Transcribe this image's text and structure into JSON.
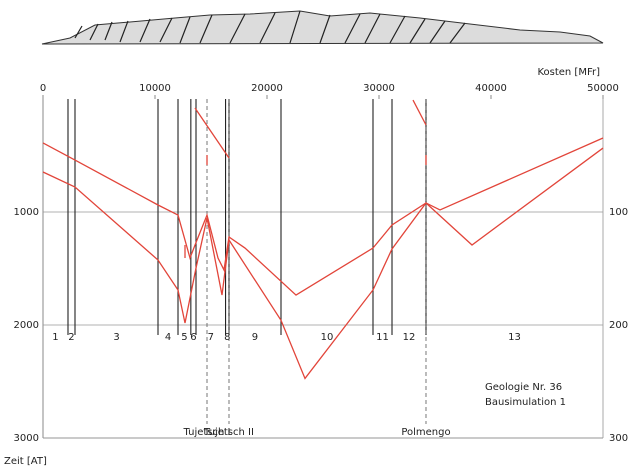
{
  "chart_data": {
    "type": "line",
    "x_label": "Kosten [MFr]",
    "y_label": "Zeit [AT]",
    "xlim": [
      0,
      50000
    ],
    "xticks": [
      0,
      10000,
      20000,
      30000,
      40000,
      50000
    ],
    "ylim": [
      0,
      3000
    ],
    "yticks": [
      1000,
      2000,
      3000
    ],
    "y_inverted": true,
    "grid": true,
    "section_boundaries": [
      2232,
      2857,
      10268,
      12054,
      13200,
      13661,
      16300,
      16607,
      21250,
      29464,
      31161,
      34196
    ],
    "section_labels": [
      "1",
      "2",
      "3",
      "4",
      "5",
      "6",
      "7",
      "8",
      "9",
      "10",
      "11",
      "12",
      "13"
    ],
    "annotations": [
      {
        "label": "Tujetsch I",
        "x": 14643
      },
      {
        "label": "Tujetsch II",
        "x": 16607
      },
      {
        "label": "Polmengo",
        "x": 34196
      }
    ],
    "notes": [
      "Geologie Nr. 36",
      "Bausimulation 1"
    ],
    "series": [
      {
        "color": "#e2453a",
        "x": [
          0,
          2857,
          10268,
          12054,
          13125,
          13750,
          14643,
          15625,
          16161,
          16607,
          18036,
          22589,
          29464,
          31161,
          34196,
          35446,
          50000
        ],
        "values": [
          389,
          540,
          938,
          1027,
          1407,
          1248,
          1027,
          1407,
          1513,
          1221,
          1319,
          1735,
          1319,
          1115,
          920,
          982,
          345
        ]
      },
      {
        "color": "#e2453a",
        "x": [
          0,
          2857,
          10268,
          12054,
          12679,
          13661,
          14643,
          15982,
          16607,
          21250,
          23393,
          29464,
          31161,
          34196,
          38304,
          50000
        ],
        "values": [
          646,
          779,
          1425,
          1690,
          1982,
          1496,
          1053,
          1735,
          1248,
          1958,
          2473,
          1690,
          1327,
          920,
          1292,
          434
        ]
      },
      {
        "color": "#e2453a",
        "x": [
          13571,
          16607
        ],
        "values": [
          80,
          522
        ]
      },
      {
        "color": "#e2453a",
        "x": [
          33036,
          34196
        ],
        "values": [
          9,
          230
        ]
      },
      {
        "color": "#e2453a",
        "x": [
          14643,
          14643
        ],
        "values": [
          496,
          584
        ]
      },
      {
        "color": "#e2453a",
        "x": [
          12679,
          12679
        ],
        "values": [
          1292,
          1407
        ]
      },
      {
        "color": "#e2453a",
        "x": [
          34196,
          34196
        ],
        "values": [
          496,
          584
        ]
      }
    ]
  }
}
